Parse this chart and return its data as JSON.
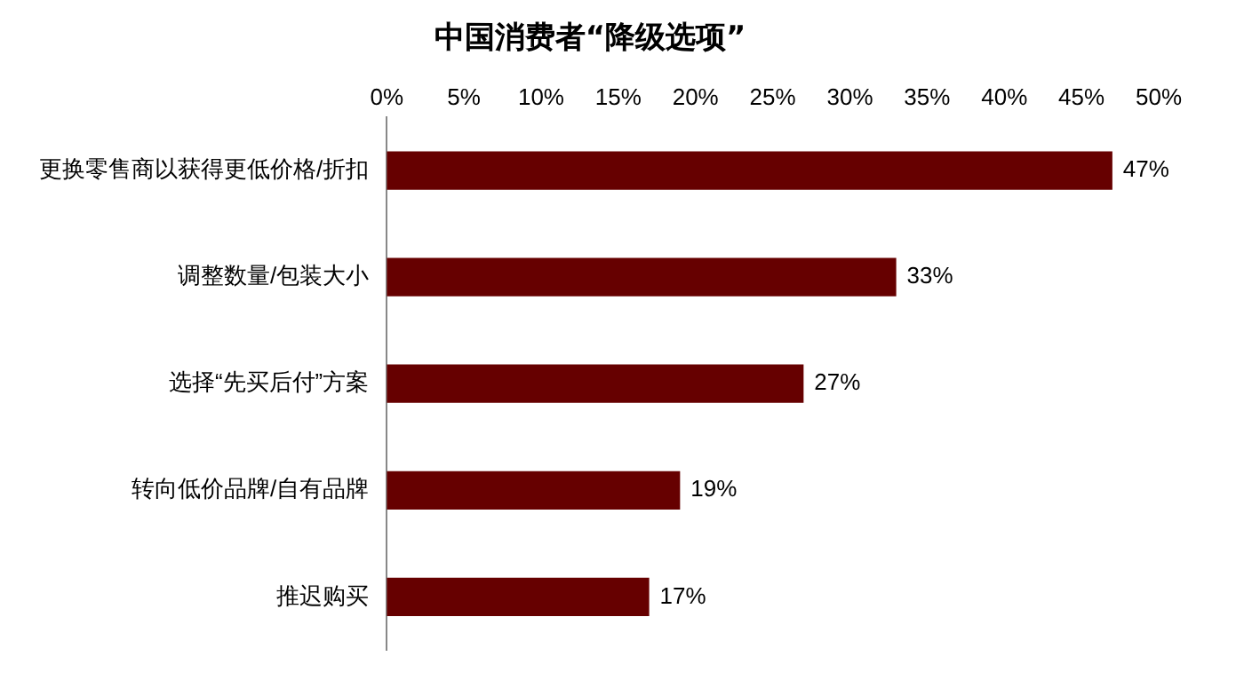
{
  "chart_data": {
    "type": "bar",
    "orientation": "horizontal",
    "title": "中国消费者“降级选项”",
    "categories": [
      "更换零售商以获得更低价格/折扣",
      "调整数量/包装大小",
      "选择“先买后付”方案",
      "转向低价品牌/自有品牌",
      "推迟购买"
    ],
    "values": [
      47,
      33,
      27,
      19,
      17
    ],
    "color": "#660000",
    "value_labels": [
      "47%",
      "33%",
      "27%",
      "19%",
      "17%"
    ],
    "xlim": [
      0,
      50
    ],
    "xticks": [
      {
        "value": 0,
        "label": "0%"
      },
      {
        "value": 5,
        "label": "5%"
      },
      {
        "value": 10,
        "label": "10%"
      },
      {
        "value": 15,
        "label": "15%"
      },
      {
        "value": 20,
        "label": "20%"
      },
      {
        "value": 25,
        "label": "25%"
      },
      {
        "value": 30,
        "label": "30%"
      },
      {
        "value": 35,
        "label": "35%"
      },
      {
        "value": 40,
        "label": "40%"
      },
      {
        "value": 45,
        "label": "45%"
      },
      {
        "value": 50,
        "label": "50%"
      }
    ],
    "grid": false,
    "legend": false
  }
}
